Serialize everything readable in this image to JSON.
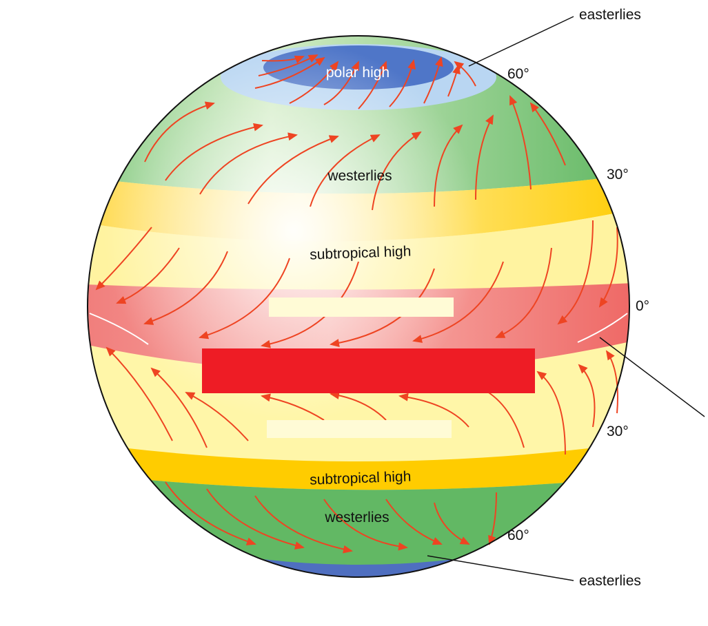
{
  "labels": {
    "polar_high": "polar high",
    "westerlies_north": "westerlies",
    "subtropical_high_north": "subtropical high",
    "subtropical_high_south": "subtropical high",
    "westerlies_south": "westerlies",
    "easterlies_top": "easterlies",
    "easterlies_bottom": "easterlies",
    "lat_60_north": "60°",
    "lat_30_north": "30°",
    "lat_0": "0°",
    "lat_30_south": "30°",
    "lat_60_south": "60°"
  },
  "colors": {
    "polar_high_cap": "#4f76c8",
    "polar_ring": "#b9d6f2",
    "westerlies_band": "#62b864",
    "subtropical_band": "#ffcc00",
    "trade_zone": "#fff6a8",
    "equator_band": "#f07a78",
    "wind_arrow": "#ee4422",
    "mask_red": "#ee1c25",
    "mask_light": "#fffbd6"
  }
}
